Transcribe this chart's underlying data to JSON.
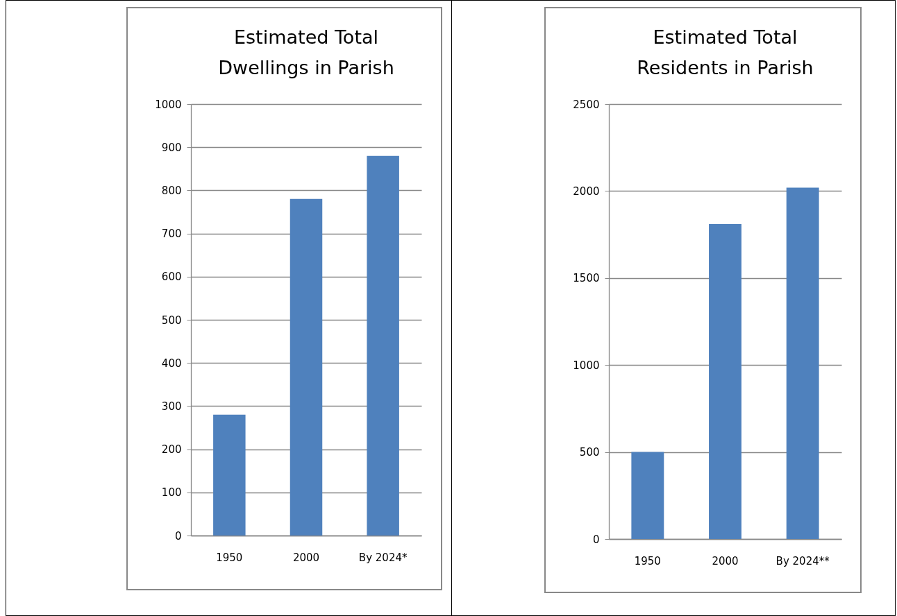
{
  "chart_data": [
    {
      "type": "bar",
      "title": "Estimated Total Dwellings in Parish",
      "categories": [
        "1950",
        "2000",
        "By 2024*"
      ],
      "values": [
        280,
        780,
        880
      ],
      "color": "#4f81bd",
      "ylim": [
        0,
        1000
      ],
      "yticks": [
        0,
        100,
        200,
        300,
        400,
        500,
        600,
        700,
        800,
        900,
        1000
      ],
      "grid": "y"
    },
    {
      "type": "bar",
      "title": "Estimated Total Residents in Parish",
      "categories": [
        "1950",
        "2000",
        "By 2024**"
      ],
      "values": [
        500,
        1810,
        2020
      ],
      "color": "#4f81bd",
      "ylim": [
        0,
        2500
      ],
      "yticks": [
        0,
        500,
        1000,
        1500,
        2000,
        2500
      ],
      "grid": "y"
    }
  ]
}
